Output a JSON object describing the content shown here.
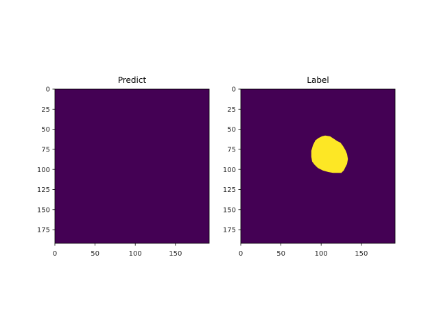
{
  "chart_data": [
    {
      "type": "heatmap",
      "title": "Predict",
      "xlim": [
        0,
        192
      ],
      "ylim": [
        192,
        0
      ],
      "xticks": [
        0,
        50,
        100,
        150
      ],
      "yticks": [
        0,
        25,
        50,
        75,
        100,
        125,
        150,
        175
      ],
      "colormap": [
        "#440154",
        "#fde725"
      ],
      "background_value": 0,
      "background_color": "#440154",
      "regions": []
    },
    {
      "type": "heatmap",
      "title": "Label",
      "xlim": [
        0,
        192
      ],
      "ylim": [
        192,
        0
      ],
      "xticks": [
        0,
        50,
        100,
        150
      ],
      "yticks": [
        0,
        25,
        50,
        75,
        100,
        125,
        150,
        175
      ],
      "colormap": [
        "#440154",
        "#fde725"
      ],
      "background_value": 0,
      "background_color": "#440154",
      "regions": [
        {
          "value": 1,
          "color": "#fde725",
          "outline": [
            [
              105,
              58
            ],
            [
              111,
              59
            ],
            [
              114,
              61
            ],
            [
              117,
              63
            ],
            [
              120,
              65
            ],
            [
              122,
              66
            ],
            [
              124,
              67
            ],
            [
              127,
              71
            ],
            [
              130,
              76
            ],
            [
              132,
              81
            ],
            [
              133,
              87
            ],
            [
              132,
              93
            ],
            [
              130,
              97
            ],
            [
              128,
              101
            ],
            [
              125,
              104
            ],
            [
              120,
              104
            ],
            [
              115,
              104
            ],
            [
              109,
              103
            ],
            [
              102,
              101
            ],
            [
              96,
              98
            ],
            [
              92,
              94
            ],
            [
              89,
              90
            ],
            [
              88,
              84
            ],
            [
              88,
              77
            ],
            [
              90,
              70
            ],
            [
              93,
              64
            ],
            [
              97,
              61
            ],
            [
              101,
              59
            ]
          ]
        }
      ]
    }
  ]
}
